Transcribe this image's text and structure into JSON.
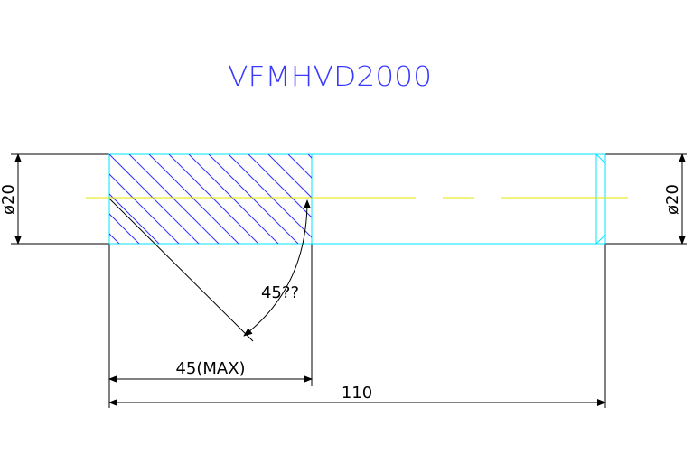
{
  "drawing": {
    "title": "VFMHVD2000",
    "dim_left_diameter": "ø20",
    "dim_right_diameter": "ø20",
    "dim_angle": "45??",
    "dim_bevel_length": "45(MAX)",
    "dim_total_length": "110"
  },
  "colors": {
    "title": "#3a3aff",
    "outline": "#00e5ff",
    "hatch": "#3333ff",
    "centerline": "#e6e600",
    "dimension": "#000000",
    "background": "#ffffff"
  }
}
